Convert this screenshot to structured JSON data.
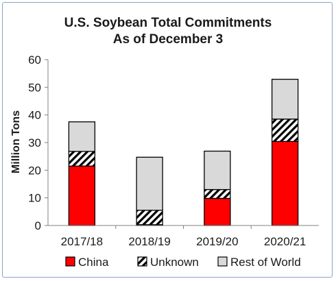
{
  "chart_data": {
    "type": "bar",
    "stacked": true,
    "title": "U.S. Soybean Total Commitments",
    "subtitle": "As of December 3",
    "xlabel": "",
    "ylabel": "Million Tons",
    "ylim": [
      0,
      60
    ],
    "yticks": [
      0,
      10,
      20,
      30,
      40,
      50,
      60
    ],
    "categories": [
      "2017/18",
      "2018/19",
      "2019/20",
      "2020/21"
    ],
    "series": [
      {
        "name": "China",
        "values": [
          21.5,
          0.3,
          9.8,
          30.4
        ],
        "color": "#ff0000",
        "pattern": "solid"
      },
      {
        "name": "Unknown",
        "values": [
          5.3,
          5.2,
          3.2,
          8.1
        ],
        "color": "#000000",
        "pattern": "diagonal-hatch"
      },
      {
        "name": "Rest of World",
        "values": [
          10.7,
          19.2,
          13.9,
          14.4
        ],
        "color": "#d9d9d9",
        "pattern": "solid"
      }
    ],
    "grid": false,
    "legend_position": "bottom"
  }
}
